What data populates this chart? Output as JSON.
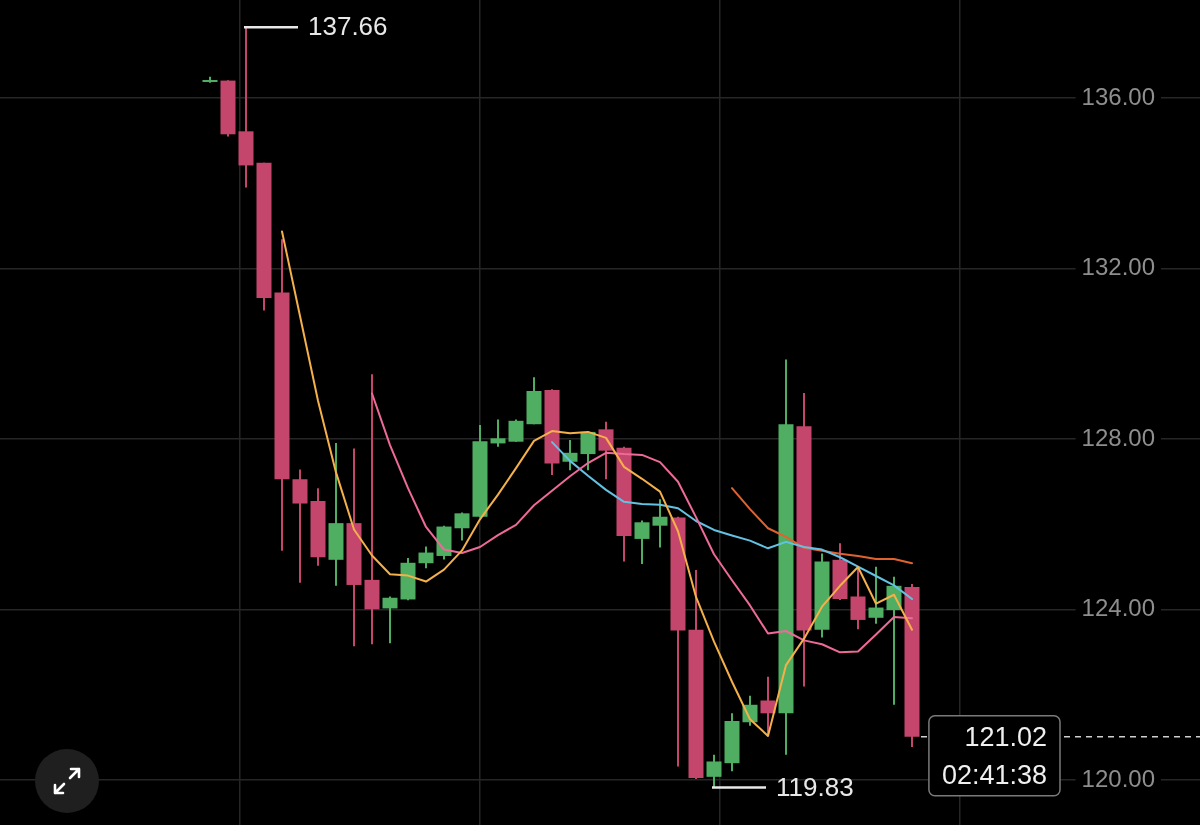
{
  "chart_data": {
    "type": "candlestick",
    "categories": [
      null,
      null,
      null,
      null,
      null,
      null,
      null,
      null,
      null,
      null,
      null,
      null,
      null,
      null,
      null,
      null,
      null,
      null,
      null,
      null,
      null,
      null,
      null,
      null,
      null,
      null,
      null,
      null,
      null,
      null,
      null,
      null,
      null,
      null,
      null,
      null,
      null,
      null,
      null,
      null
    ],
    "ohlc": [
      [
        136.38,
        136.5,
        136.36,
        136.42
      ],
      [
        136.41,
        136.42,
        135.1,
        135.15
      ],
      [
        135.22,
        137.66,
        133.9,
        134.42
      ],
      [
        134.48,
        134.48,
        131.02,
        131.31
      ],
      [
        131.44,
        132.69,
        125.38,
        127.06
      ],
      [
        127.06,
        127.29,
        124.63,
        126.49
      ],
      [
        126.55,
        126.85,
        125.03,
        125.23
      ],
      [
        125.17,
        127.91,
        124.56,
        126.03
      ],
      [
        126.03,
        127.78,
        123.14,
        124.58
      ],
      [
        124.7,
        129.52,
        123.19,
        124.01
      ],
      [
        124.03,
        124.31,
        123.21,
        124.28
      ],
      [
        124.24,
        125.21,
        124.22,
        125.1
      ],
      [
        125.09,
        125.48,
        124.97,
        125.34
      ],
      [
        125.26,
        125.97,
        125.18,
        125.95
      ],
      [
        125.91,
        126.28,
        125.62,
        126.26
      ],
      [
        126.18,
        128.33,
        126.16,
        127.95
      ],
      [
        127.9,
        128.46,
        127.82,
        128.02
      ],
      [
        127.94,
        128.46,
        127.94,
        128.43
      ],
      [
        128.35,
        129.45,
        128.35,
        129.13
      ],
      [
        129.15,
        129.17,
        127.16,
        127.43
      ],
      [
        127.47,
        127.98,
        127.27,
        127.68
      ],
      [
        127.65,
        128.19,
        127.27,
        128.17
      ],
      [
        128.23,
        128.41,
        127.06,
        127.73
      ],
      [
        127.8,
        127.82,
        125.13,
        125.73
      ],
      [
        125.66,
        126.09,
        125.07,
        126.05
      ],
      [
        125.97,
        126.59,
        125.46,
        126.18
      ],
      [
        126.16,
        126.18,
        120.32,
        123.51
      ],
      [
        123.53,
        124.93,
        120.03,
        120.05
      ],
      [
        120.08,
        120.6,
        119.83,
        120.44
      ],
      [
        120.4,
        121.57,
        120.21,
        121.39
      ],
      [
        121.36,
        121.98,
        121.28,
        121.77
      ],
      [
        121.87,
        122.43,
        121.03,
        121.57
      ],
      [
        121.57,
        129.87,
        120.6,
        128.35
      ],
      [
        128.3,
        129.08,
        122.2,
        123.51
      ],
      [
        123.53,
        125.32,
        123.35,
        125.13
      ],
      [
        125.17,
        125.56,
        124.23,
        124.25
      ],
      [
        124.31,
        125.01,
        123.54,
        123.76
      ],
      [
        123.81,
        125.01,
        123.67,
        124.05
      ],
      [
        123.99,
        124.77,
        121.77,
        124.56
      ],
      [
        124.53,
        124.6,
        120.78,
        121.02
      ]
    ],
    "colors": [
      "#4fae62",
      "#c4466c",
      "#c4466c",
      "#c4466c",
      "#c4466c",
      "#c4466c",
      "#c4466c",
      "#4fae62",
      "#c4466c",
      "#c4466c",
      "#4fae62",
      "#4fae62",
      "#4fae62",
      "#4fae62",
      "#4fae62",
      "#4fae62",
      "#4fae62",
      "#4fae62",
      "#4fae62",
      "#c4466c",
      "#4fae62",
      "#4fae62",
      "#c4466c",
      "#c4466c",
      "#4fae62",
      "#4fae62",
      "#c4466c",
      "#c4466c",
      "#4fae62",
      "#4fae62",
      "#4fae62",
      "#c4466c",
      "#4fae62",
      "#c4466c",
      "#4fae62",
      "#c4466c",
      "#c4466c",
      "#4fae62",
      "#4fae62",
      "#c4466c"
    ],
    "series": [
      {
        "type": "line",
        "color": "#f4b04a",
        "values": [
          null,
          null,
          null,
          null,
          132.87,
          130.89,
          128.9,
          127.22,
          125.88,
          125.27,
          124.83,
          124.8,
          124.66,
          124.94,
          125.39,
          126.12,
          126.7,
          127.32,
          127.96,
          128.19,
          128.14,
          128.17,
          128.03,
          127.35,
          127.07,
          126.77,
          125.84,
          124.3,
          123.25,
          122.31,
          121.43,
          121.04,
          122.7,
          123.32,
          124.07,
          124.56,
          125,
          124.14,
          124.35,
          123.53
        ]
      },
      {
        "type": "line",
        "color": "#ee6a98",
        "values": [
          null,
          null,
          null,
          null,
          null,
          null,
          null,
          null,
          null,
          129.07,
          127.86,
          126.85,
          125.94,
          125.41,
          125.33,
          125.47,
          125.75,
          125.99,
          126.45,
          126.79,
          127.13,
          127.44,
          127.68,
          127.65,
          127.63,
          127.46,
          127,
          126.17,
          125.3,
          124.69,
          124.1,
          123.44,
          123.5,
          123.28,
          123.19,
          123,
          123.02,
          123.42,
          123.83,
          123.8
        ]
      },
      {
        "type": "line",
        "color": "#63c2e3",
        "values": [
          null,
          null,
          null,
          null,
          null,
          null,
          null,
          null,
          null,
          null,
          null,
          null,
          null,
          null,
          null,
          null,
          null,
          null,
          null,
          127.93,
          127.49,
          127.14,
          126.81,
          126.53,
          126.48,
          126.46,
          126.38,
          126.08,
          125.87,
          125.74,
          125.62,
          125.44,
          125.59,
          125.47,
          125.41,
          125.23,
          125.01,
          124.79,
          124.57,
          124.25
        ]
      },
      {
        "type": "line",
        "color": "#e0632f",
        "values": [
          null,
          null,
          null,
          null,
          null,
          null,
          null,
          null,
          null,
          null,
          null,
          null,
          null,
          null,
          null,
          null,
          null,
          null,
          null,
          null,
          null,
          null,
          null,
          null,
          null,
          null,
          null,
          null,
          null,
          126.85,
          126.36,
          125.91,
          125.71,
          125.45,
          125.38,
          125.31,
          125.26,
          125.19,
          125.19,
          125.09
        ]
      }
    ],
    "ylim": [
      118.95,
      138.3
    ],
    "yticks": [
      {
        "value": 120,
        "label": "120.00"
      },
      {
        "value": 124,
        "label": "124.00"
      },
      {
        "value": 128,
        "label": "128.00"
      },
      {
        "value": 132,
        "label": "132.00"
      },
      {
        "value": 136,
        "label": "136.00"
      }
    ],
    "grid": true,
    "tick_labels": "y",
    "ref_lines": [
      {
        "axis": "y",
        "value": 121.02,
        "label": "121.02",
        "color": "#d0d0d0",
        "line_style": "dashed"
      }
    ],
    "annotations": [
      "137.66",
      "119.83",
      "02:41:38"
    ]
  }
}
